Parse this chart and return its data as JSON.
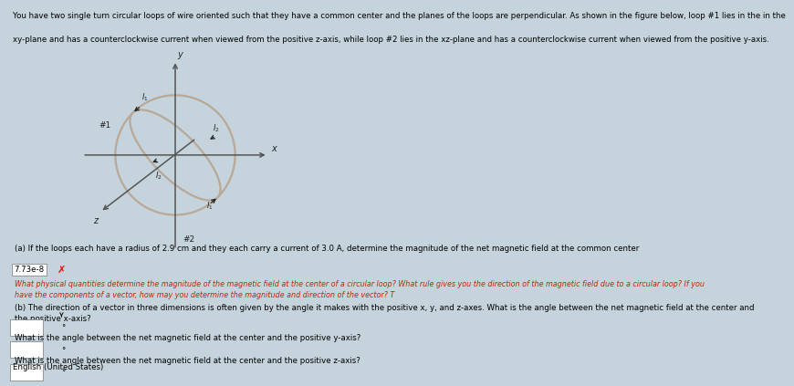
{
  "bg_color": "#c5d3dc",
  "title_line1": "You have two single turn circular loops of wire oriented such that they have a common center and the planes of the loops are perpendicular. As shown in the figure below, loop #1 lies in the in the",
  "title_line2": "xy-plane and has a counterclockwise current when viewed from the positive z-axis, while loop #2 lies in the xz-plane and has a counterclockwise current when viewed from the positive y-axis.",
  "part_a_text": "(a) If the loops each have a radius of 2.9 cm and they each carry a current of 3.0 A, determine the magnitude of the net magnetic field at the common center",
  "answer_a": "7.73e-8",
  "hint_a_line1": "What physical quantities determine the magnitude of the magnetic field at the center of a circular loop? What rule gives you the direction of the magnetic field due to a circular loop? If you",
  "hint_a_line2": "have the components of a vector, how may you determine the magnitude and direction of the vector? T",
  "part_b_line1": "(b) The direction of a vector in three dimensions is often given by the angle it makes with the positive x, y, and z-axes. What is the angle between the net magnetic field at the center and",
  "part_b_line2": "the positive x-axis?",
  "q_yaxis": "What is the angle between the net magnetic field at the center and the positive y-axis?",
  "q_zaxis": "What is the angle between the net magnetic field at the center and the positive z-axis?",
  "footer": "English (United States)",
  "circle_color": "#b8a898",
  "axis_color": "#555555",
  "label_color": "#222222",
  "hint_color": "#cc2200",
  "text_fontsize": 6.2,
  "hint_fontsize": 5.8
}
